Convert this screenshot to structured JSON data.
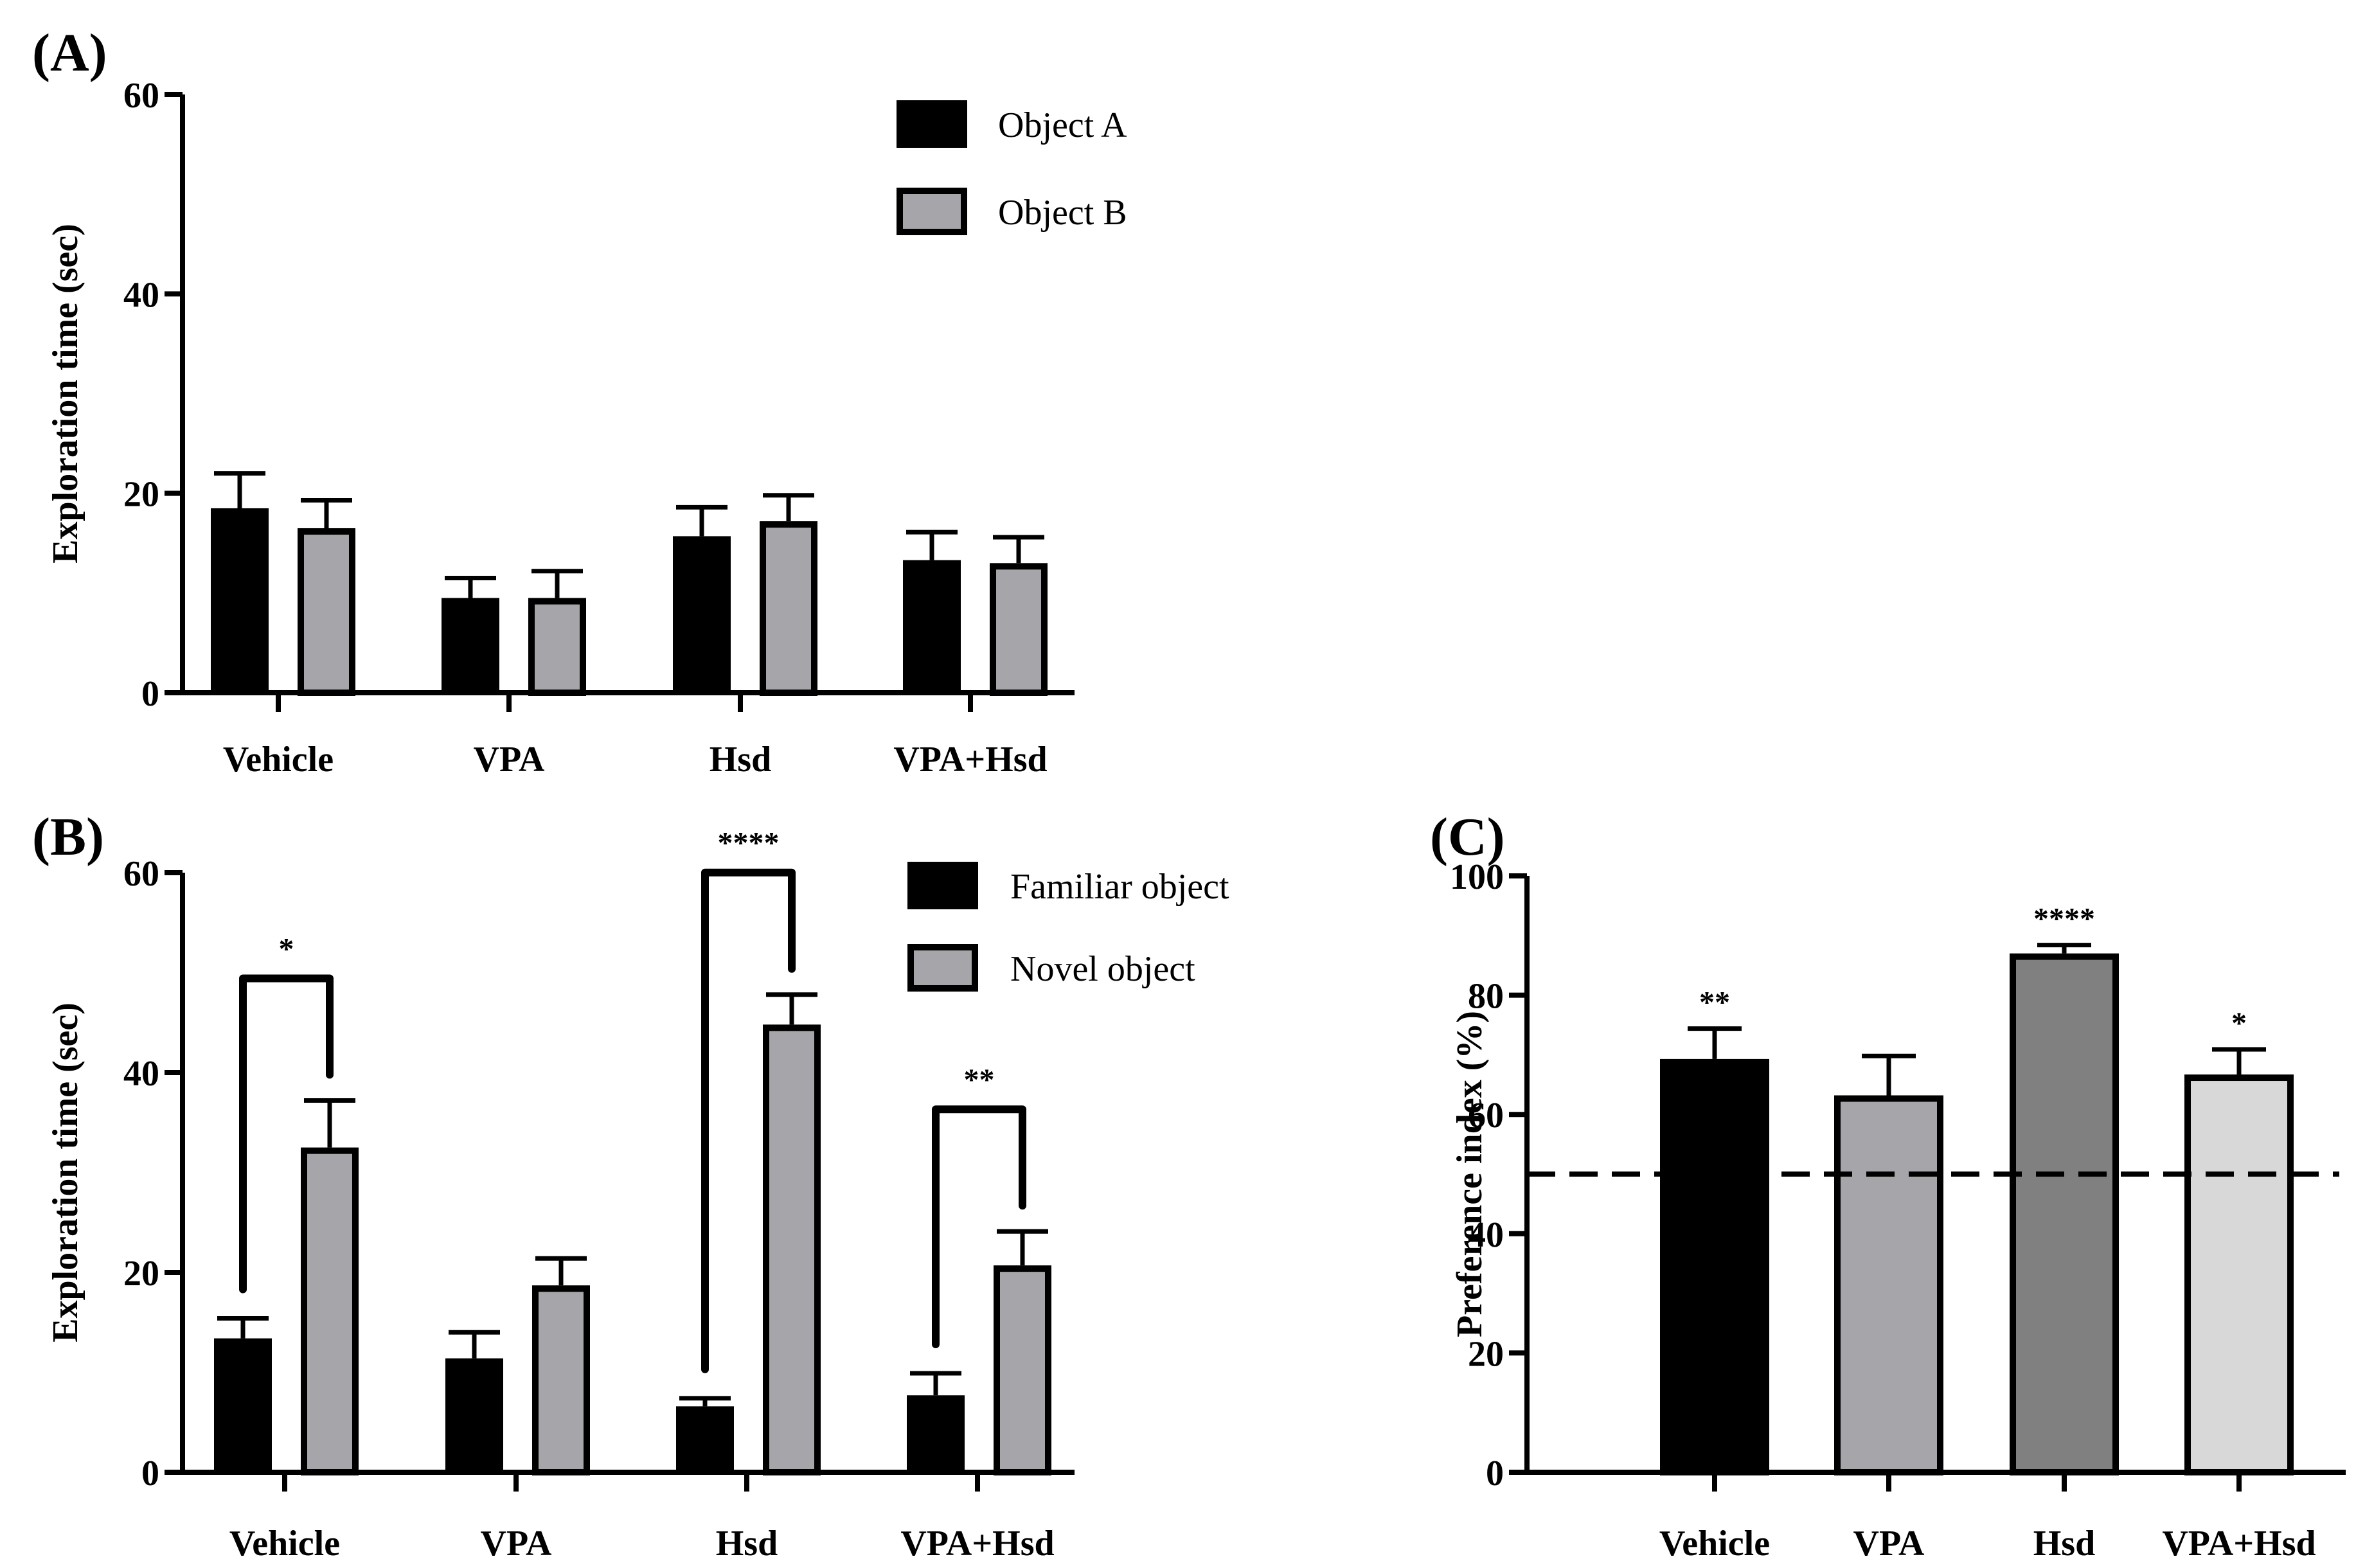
{
  "chart_data": [
    {
      "panel": "(A)",
      "type": "bar",
      "title": "",
      "xlabel": "",
      "ylabel": "Exploration time (sec)",
      "ylim": [
        0,
        60
      ],
      "yticks": [
        0,
        20,
        40,
        60
      ],
      "categories": [
        "Vehicle",
        "VPA",
        "Hsd",
        "VPA+Hsd"
      ],
      "series": [
        {
          "name": "Object A",
          "color": "#000000",
          "values": [
            18.5,
            9.5,
            15.7,
            13.3
          ],
          "errors": [
            3.5,
            2.0,
            2.9,
            2.8
          ]
        },
        {
          "name": "Object B",
          "color": "#a5a5aa",
          "values": [
            16.5,
            9.5,
            17.2,
            13.0
          ],
          "errors": [
            2.8,
            2.7,
            2.6,
            2.6
          ]
        }
      ],
      "legend": "top-right",
      "annotations": []
    },
    {
      "panel": "(B)",
      "type": "bar",
      "title": "",
      "xlabel": "",
      "ylabel": "Exploration time (sec)",
      "ylim": [
        0,
        60
      ],
      "yticks": [
        0,
        20,
        40,
        60
      ],
      "categories": [
        "Vehicle",
        "VPA",
        "Hsd",
        "VPA+Hsd"
      ],
      "series": [
        {
          "name": "Familiar object",
          "color": "#000000",
          "values": [
            13.4,
            11.4,
            6.6,
            7.7
          ],
          "errors": [
            2.0,
            2.6,
            0.8,
            2.2
          ]
        },
        {
          "name": "Novel object",
          "color": "#a5a5aa",
          "values": [
            32.5,
            18.7,
            44.8,
            20.7
          ],
          "errors": [
            4.7,
            2.7,
            3.0,
            3.4
          ]
        }
      ],
      "legend": "top-right",
      "annotations": [
        {
          "category": "Vehicle",
          "label": "*"
        },
        {
          "category": "Hsd",
          "label": "****"
        },
        {
          "category": "VPA+Hsd",
          "label": "**"
        }
      ]
    },
    {
      "panel": "(C)",
      "type": "bar",
      "title": "",
      "xlabel": "",
      "ylabel": "Preference index (%)",
      "ylim": [
        0,
        100
      ],
      "yticks": [
        0,
        20,
        40,
        60,
        80,
        100
      ],
      "categories": [
        "Vehicle",
        "VPA",
        "Hsd",
        "VPA+Hsd"
      ],
      "values": [
        69.3,
        63.2,
        87.0,
        66.7
      ],
      "errors": [
        5.1,
        6.6,
        1.4,
        4.2
      ],
      "colors": [
        "#000000",
        "#a5a5aa",
        "#808080",
        "#d8d8d8"
      ],
      "significance": [
        "**",
        "",
        "****",
        "*"
      ],
      "reference_line": 50
    }
  ]
}
